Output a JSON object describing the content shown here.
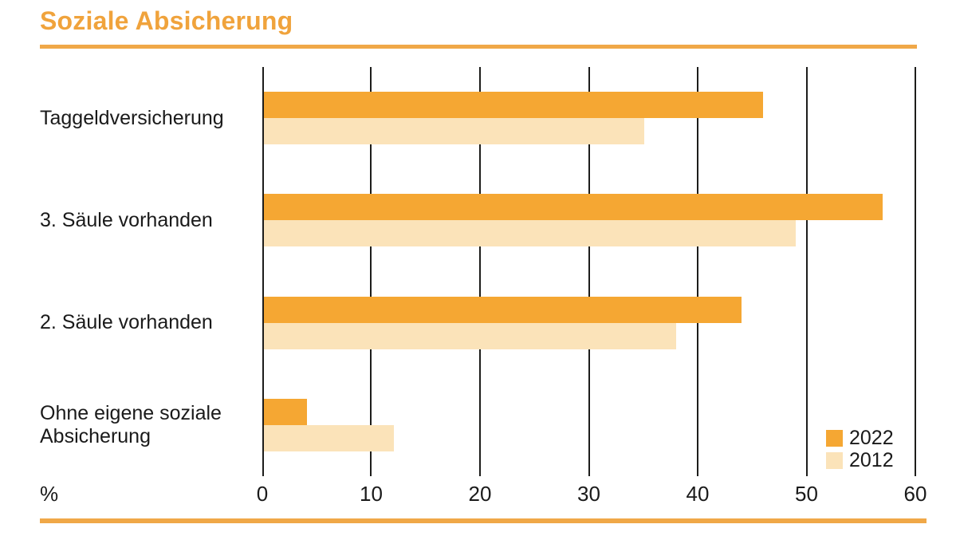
{
  "colors": {
    "accent_title": "#f0a33c",
    "accent_rule": "#f0a848",
    "bar_2022": "#f5a733",
    "bar_2012": "#fbe3b9",
    "gridline": "#1d1d1b",
    "text": "#1a1a1a"
  },
  "chart_data": {
    "type": "bar",
    "orientation": "horizontal",
    "title": "Soziale Absicherung",
    "categories": [
      "Taggeldversicherung",
      "3. Säule vorhanden",
      "2. Säule vorhanden",
      "Ohne eigene soziale Absicherung"
    ],
    "series": [
      {
        "name": "2022",
        "values": [
          46,
          57,
          44,
          4
        ],
        "color": "#f5a733"
      },
      {
        "name": "2012",
        "values": [
          35,
          49,
          38,
          12
        ],
        "color": "#fbe3b9"
      }
    ],
    "xlabel": "%",
    "xlim": [
      0,
      60
    ],
    "xticks": [
      0,
      10,
      20,
      30,
      40,
      50,
      60
    ],
    "grid": "vertical",
    "legend_position": "bottom-right",
    "legend_entries": [
      "2022",
      "2012"
    ]
  }
}
